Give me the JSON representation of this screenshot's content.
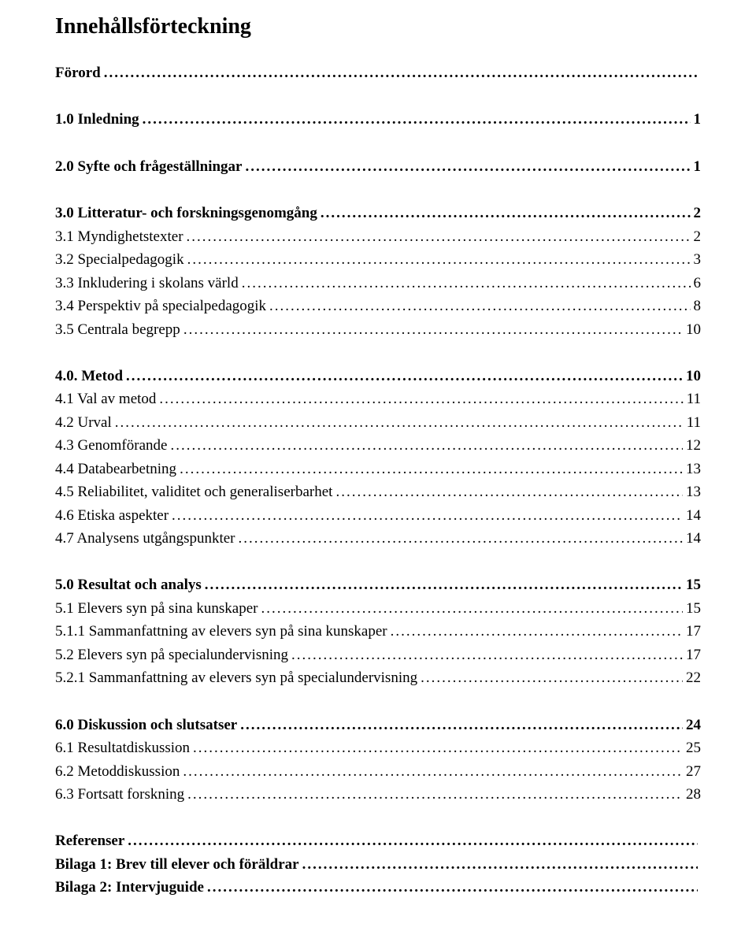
{
  "title": "Innehållsförteckning",
  "entries": [
    {
      "label": "Förord",
      "page": "",
      "bold": true,
      "spacerAfter": true
    },
    {
      "label": "1.0 Inledning",
      "page": "1",
      "bold": true,
      "spacerAfter": true
    },
    {
      "label": "2.0 Syfte och frågeställningar",
      "page": "1",
      "bold": true,
      "spacerAfter": true
    },
    {
      "label": "3.0 Litteratur- och forskningsgenomgång",
      "page": "2",
      "bold": true
    },
    {
      "label": "3.1 Myndighetstexter",
      "page": "2"
    },
    {
      "label": "3.2 Specialpedagogik",
      "page": "3"
    },
    {
      "label": "3.3 Inkludering i skolans värld",
      "page": "6"
    },
    {
      "label": "3.4 Perspektiv på specialpedagogik",
      "page": "8"
    },
    {
      "label": "3.5 Centrala begrepp",
      "page": "10",
      "spacerAfter": true
    },
    {
      "label": "4.0. Metod",
      "page": "10",
      "bold": true
    },
    {
      "label": "4.1 Val av metod",
      "page": "11"
    },
    {
      "label": "4.2 Urval",
      "page": "11"
    },
    {
      "label": "4.3 Genomförande",
      "page": "12"
    },
    {
      "label": "4.4 Databearbetning",
      "page": "13"
    },
    {
      "label": "4.5 Reliabilitet, validitet och generaliserbarhet",
      "page": "13"
    },
    {
      "label": "4.6 Etiska aspekter",
      "page": "14"
    },
    {
      "label": "4.7 Analysens utgångspunkter",
      "page": "14",
      "spacerAfter": true
    },
    {
      "label": "5.0 Resultat och analys",
      "page": "15",
      "bold": true
    },
    {
      "label": "5.1 Elevers syn på sina kunskaper",
      "page": "15"
    },
    {
      "label": "5.1.1 Sammanfattning av elevers syn på sina kunskaper",
      "page": "17"
    },
    {
      "label": "5.2 Elevers syn på specialundervisning",
      "page": "17"
    },
    {
      "label": "5.2.1 Sammanfattning av elevers syn på specialundervisning",
      "page": "22",
      "spacerAfter": true
    },
    {
      "label": "6.0 Diskussion och slutsatser",
      "page": "24",
      "bold": true
    },
    {
      "label": "6.1 Resultatdiskussion",
      "page": "25"
    },
    {
      "label": "6.2 Metoddiskussion",
      "page": "27"
    },
    {
      "label": "6.3 Fortsatt forskning",
      "page": "28",
      "spacerAfter": true
    },
    {
      "label": "Referenser",
      "page": "",
      "bold": true
    },
    {
      "label": "Bilaga 1: Brev till elever och föräldrar",
      "page": "",
      "bold": true
    },
    {
      "label": "Bilaga 2: Intervjuguide",
      "page": "",
      "bold": true
    }
  ]
}
